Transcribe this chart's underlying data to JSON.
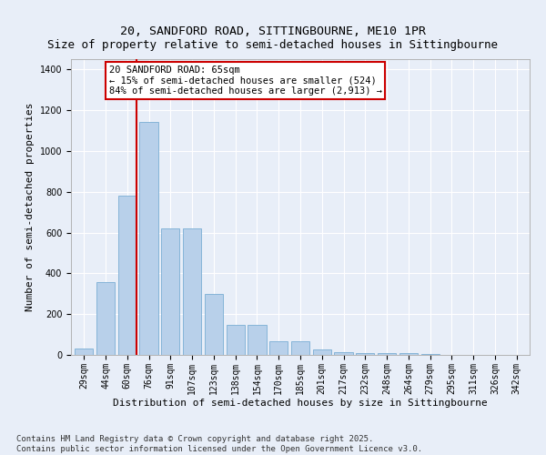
{
  "title_line1": "20, SANDFORD ROAD, SITTINGBOURNE, ME10 1PR",
  "title_line2": "Size of property relative to semi-detached houses in Sittingbourne",
  "xlabel": "Distribution of semi-detached houses by size in Sittingbourne",
  "ylabel": "Number of semi-detached properties",
  "categories": [
    "29sqm",
    "44sqm",
    "60sqm",
    "76sqm",
    "91sqm",
    "107sqm",
    "123sqm",
    "138sqm",
    "154sqm",
    "170sqm",
    "185sqm",
    "201sqm",
    "217sqm",
    "232sqm",
    "248sqm",
    "264sqm",
    "279sqm",
    "295sqm",
    "311sqm",
    "326sqm",
    "342sqm"
  ],
  "values": [
    30,
    355,
    780,
    1140,
    620,
    620,
    300,
    148,
    148,
    65,
    65,
    25,
    15,
    10,
    10,
    10,
    5,
    0,
    0,
    0,
    0
  ],
  "bar_color": "#b8d0ea",
  "bar_edge_color": "#7aadd4",
  "vline_x_index": 2,
  "vline_color": "#cc0000",
  "annotation_text": "20 SANDFORD ROAD: 65sqm\n← 15% of semi-detached houses are smaller (524)\n84% of semi-detached houses are larger (2,913) →",
  "annotation_box_color": "#ffffff",
  "annotation_box_edge_color": "#cc0000",
  "ylim": [
    0,
    1450
  ],
  "yticks": [
    0,
    200,
    400,
    600,
    800,
    1000,
    1200,
    1400
  ],
  "background_color": "#e8eef8",
  "footer_text": "Contains HM Land Registry data © Crown copyright and database right 2025.\nContains public sector information licensed under the Open Government Licence v3.0.",
  "title_fontsize": 9.5,
  "axis_label_fontsize": 8,
  "tick_fontsize": 7,
  "annotation_fontsize": 7.5,
  "footer_fontsize": 6.5
}
